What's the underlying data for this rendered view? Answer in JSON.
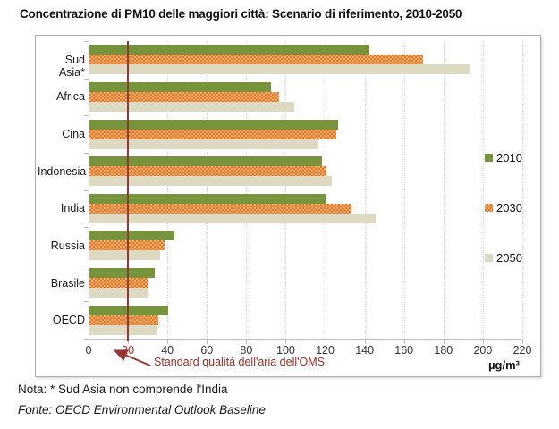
{
  "title": "Concentrazione di PM10 delle maggiori città: Scenario di riferimento, 2010-2050",
  "chart_data": {
    "type": "bar",
    "orientation": "horizontal",
    "title": "Concentrazione di PM10 delle maggiori città: Scenario di riferimento, 2010-2050",
    "categories": [
      "Sud Asia*",
      "Africa",
      "Cina",
      "Indonesia",
      "India",
      "Russia",
      "Brasile",
      "OECD"
    ],
    "series": [
      {
        "name": "2010",
        "color": "#77933C",
        "pattern": "solid",
        "values": [
          142,
          92,
          126,
          118,
          120,
          43,
          33,
          40
        ]
      },
      {
        "name": "2030",
        "color": "#E0772E",
        "pattern": "checker",
        "values": [
          169,
          96,
          125,
          120,
          133,
          38,
          30,
          35
        ]
      },
      {
        "name": "2050",
        "color": "#DDD9C3",
        "pattern": "solid",
        "values": [
          193,
          104,
          116,
          123,
          145,
          36,
          30,
          34
        ]
      }
    ],
    "xlim": [
      0,
      220
    ],
    "xticks": [
      0,
      20,
      40,
      60,
      80,
      100,
      120,
      140,
      160,
      180,
      200,
      220
    ],
    "x_unit": "µg/m³",
    "grid": "vertical-dotted",
    "legend_position": "right-inside",
    "reference_line": {
      "value": 20,
      "color": "#953735",
      "label": "Standard qualità dell'aria dell'OMS"
    }
  },
  "notes": {
    "nota": "Nota: * Sud Asia non comprende l'India",
    "fonte": "Fonte: OECD Environmental Outlook Baseline"
  },
  "colors": {
    "checker_base": "#F5AD6A",
    "ref_text": "#9C2B28",
    "axis": "#BFBFBF"
  }
}
